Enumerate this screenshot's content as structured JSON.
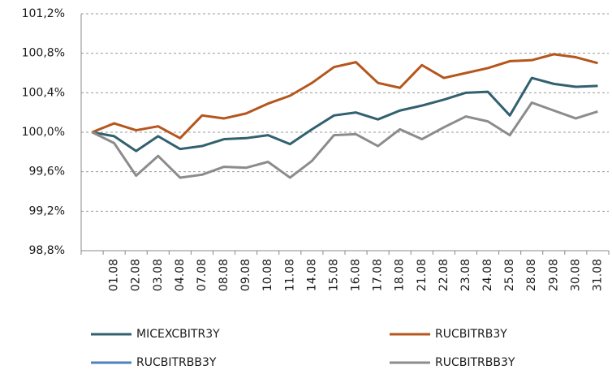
{
  "chart_data": {
    "type": "line",
    "categories": [
      null,
      "01.08",
      "02.08",
      "03.08",
      "04.08",
      "07.08",
      "08.08",
      "09.08",
      "10.08",
      "11.08",
      "14.08",
      "15.08",
      "16.08",
      "17.08",
      "18.08",
      "21.08",
      "22.08",
      "23.08",
      "24.08",
      "25.08",
      "28.08",
      "29.08",
      "30.08",
      "31.08"
    ],
    "series": [
      {
        "name": "MICEXCBITR3Y",
        "color": "#31616f",
        "values": [
          100.0,
          99.96,
          99.81,
          99.96,
          99.83,
          99.86,
          99.93,
          99.94,
          99.97,
          99.88,
          100.03,
          100.17,
          100.2,
          100.13,
          100.22,
          100.27,
          100.33,
          100.4,
          100.41,
          100.17,
          100.55,
          100.49,
          100.46,
          100.47
        ]
      },
      {
        "name": "RUCBITRB3Y",
        "color": "#b5561c",
        "values": [
          100.0,
          100.09,
          100.02,
          100.06,
          99.94,
          100.17,
          100.14,
          100.19,
          100.29,
          100.37,
          100.5,
          100.66,
          100.71,
          100.5,
          100.45,
          100.68,
          100.55,
          100.6,
          100.65,
          100.72,
          100.73,
          100.79,
          100.76,
          100.7
        ]
      },
      {
        "name": "RUCBITRBB3Y",
        "color": "#4f81bd",
        "values": [
          null,
          null,
          null,
          null,
          null,
          null,
          null,
          null,
          null,
          null,
          null,
          null,
          null,
          null,
          null,
          null,
          null,
          null,
          null,
          null,
          null,
          null,
          null,
          null
        ]
      },
      {
        "name": "RUCBITRBB3Y",
        "color": "#8c8c8c",
        "values": [
          100.0,
          99.89,
          99.56,
          99.76,
          99.54,
          99.57,
          99.65,
          99.64,
          99.7,
          99.54,
          99.71,
          99.97,
          99.98,
          99.86,
          100.03,
          99.93,
          100.05,
          100.16,
          100.11,
          99.97,
          100.3,
          100.22,
          100.14,
          100.21
        ]
      }
    ],
    "ylim": [
      98.8,
      101.2
    ],
    "yticks": [
      {
        "value": 98.8,
        "label": "98,8%"
      },
      {
        "value": 99.2,
        "label": "99,2%"
      },
      {
        "value": 99.6,
        "label": "99,6%"
      },
      {
        "value": 100.0,
        "label": "100,0%"
      },
      {
        "value": 100.4,
        "label": "100,4%"
      },
      {
        "value": 100.8,
        "label": "100,8%"
      },
      {
        "value": 101.2,
        "label": "101,2%"
      }
    ],
    "grid": true,
    "legend": "bottom"
  }
}
